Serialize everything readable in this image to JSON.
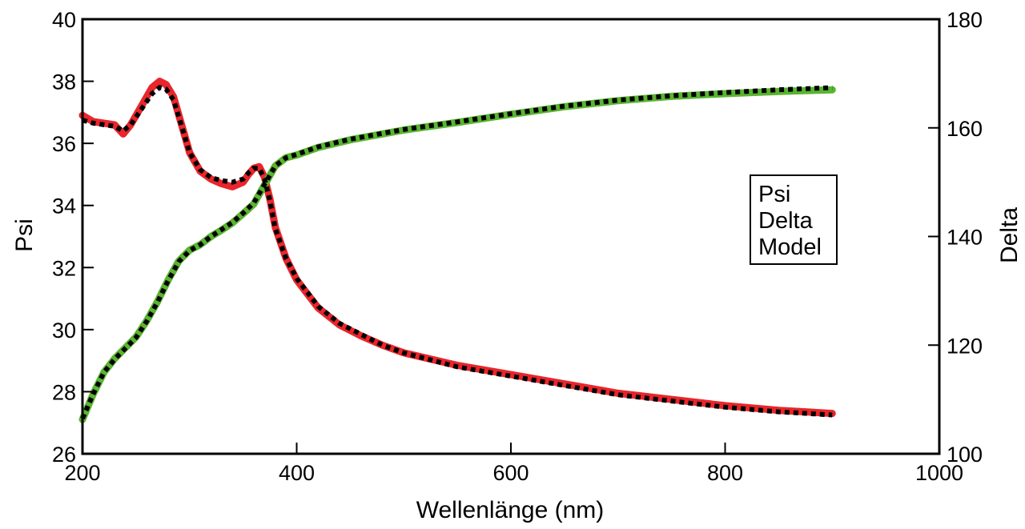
{
  "chart_data": {
    "type": "line",
    "xlabel": "Wellenlänge (nm)",
    "ylabel_left": "Psi",
    "ylabel_right": "Delta",
    "xlim": [
      200,
      1000
    ],
    "ylim_left": [
      26,
      40
    ],
    "ylim_right": [
      100,
      180
    ],
    "x_ticks": [
      200,
      400,
      600,
      800,
      1000
    ],
    "y_left_ticks": [
      26,
      28,
      30,
      32,
      34,
      36,
      38,
      40
    ],
    "y_right_ticks": [
      100,
      120,
      140,
      160,
      180
    ],
    "grid": false,
    "legend_position": "center-right",
    "series": [
      {
        "name": "Psi",
        "axis": "left",
        "color": "#e8262b",
        "x": [
          200,
          210,
          220,
          230,
          238,
          245,
          255,
          265,
          272,
          278,
          285,
          290,
          300,
          310,
          320,
          330,
          340,
          350,
          355,
          360,
          365,
          370,
          375,
          380,
          390,
          400,
          420,
          440,
          460,
          480,
          500,
          550,
          600,
          650,
          700,
          750,
          800,
          850,
          900
        ],
        "values": [
          36.9,
          36.7,
          36.65,
          36.6,
          36.3,
          36.6,
          37.2,
          37.8,
          38.0,
          37.9,
          37.5,
          36.9,
          35.7,
          35.1,
          34.85,
          34.7,
          34.6,
          34.75,
          35.0,
          35.2,
          35.25,
          34.9,
          34.2,
          33.3,
          32.3,
          31.6,
          30.7,
          30.15,
          29.8,
          29.5,
          29.25,
          28.85,
          28.55,
          28.25,
          27.95,
          27.75,
          27.55,
          27.4,
          27.3
        ]
      },
      {
        "name": "Delta",
        "axis": "right",
        "color": "#5ab431",
        "x": [
          200,
          210,
          220,
          230,
          240,
          250,
          260,
          270,
          280,
          290,
          300,
          310,
          320,
          330,
          340,
          350,
          360,
          370,
          380,
          390,
          400,
          420,
          450,
          500,
          550,
          600,
          650,
          700,
          750,
          800,
          850,
          900
        ],
        "values": [
          106.3,
          111.0,
          115.0,
          117.5,
          119.5,
          121.5,
          124.5,
          128.0,
          132.0,
          135.5,
          137.5,
          138.5,
          140.0,
          141.2,
          142.5,
          144.2,
          146.0,
          149.5,
          153.0,
          154.5,
          155.0,
          156.4,
          157.8,
          159.6,
          161.0,
          162.5,
          163.9,
          165.0,
          165.8,
          166.3,
          166.7,
          167.0
        ]
      },
      {
        "name": "Model",
        "axis": "left",
        "color": "#000000",
        "dashed": true,
        "x": [
          200,
          210,
          220,
          230,
          238,
          245,
          255,
          265,
          272,
          278,
          285,
          290,
          300,
          310,
          320,
          330,
          340,
          350,
          355,
          360,
          365,
          370,
          375,
          380,
          390,
          400,
          420,
          440,
          460,
          480,
          500,
          550,
          600,
          650,
          700,
          750,
          800,
          850,
          900
        ],
        "values": [
          36.75,
          36.65,
          36.6,
          36.55,
          36.4,
          36.6,
          37.1,
          37.6,
          37.8,
          37.75,
          37.4,
          36.85,
          35.7,
          35.15,
          34.9,
          34.8,
          34.75,
          34.85,
          35.05,
          35.2,
          35.2,
          34.85,
          34.15,
          33.25,
          32.3,
          31.65,
          30.75,
          30.2,
          29.85,
          29.5,
          29.25,
          28.8,
          28.5,
          28.2,
          27.9,
          27.7,
          27.5,
          27.35,
          27.25
        ]
      },
      {
        "name": "Model",
        "axis": "right",
        "color": "#000000",
        "dashed": true,
        "x": [
          200,
          210,
          220,
          230,
          240,
          250,
          260,
          270,
          280,
          290,
          300,
          310,
          320,
          330,
          340,
          350,
          360,
          370,
          380,
          390,
          400,
          420,
          450,
          500,
          550,
          600,
          650,
          700,
          750,
          800,
          850,
          900
        ],
        "values": [
          106.5,
          111.0,
          115.0,
          117.4,
          119.4,
          121.4,
          124.4,
          127.9,
          131.9,
          135.4,
          137.4,
          138.5,
          140.0,
          141.3,
          142.6,
          144.3,
          146.2,
          149.6,
          153.0,
          154.5,
          155.1,
          156.5,
          157.9,
          159.7,
          161.1,
          162.6,
          164.0,
          165.1,
          165.9,
          166.5,
          167.0,
          167.4
        ]
      }
    ],
    "legend": [
      {
        "label": "Psi",
        "color": "#e8262b"
      },
      {
        "label": "Delta",
        "color": "#5ab431"
      },
      {
        "label": "Model",
        "color": "#000000"
      }
    ]
  }
}
